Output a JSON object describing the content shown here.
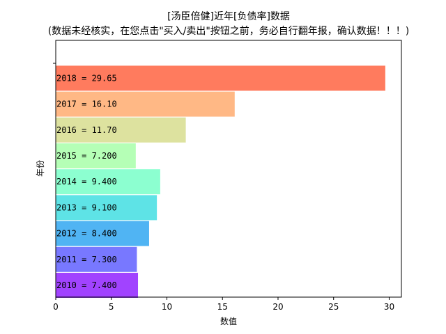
{
  "chart_data": {
    "type": "bar",
    "orientation": "horizontal",
    "title": "[汤臣倍健]近年[负债率]数据",
    "subtitle": "(数据未经核实，在您点击\"买入/卖出\"按钮之前，务必自行翻年报，确认数据！！！)",
    "xlabel": "数值",
    "ylabel": "年份",
    "xlim": [
      0,
      31.1
    ],
    "xticks": [
      0,
      5,
      10,
      15,
      20,
      25,
      30
    ],
    "grid": false,
    "categories": [
      "2010",
      "2011",
      "2012",
      "2013",
      "2014",
      "2015",
      "2016",
      "2017",
      "2018"
    ],
    "values": [
      7.4,
      7.3,
      8.4,
      9.1,
      9.4,
      7.2,
      11.7,
      16.1,
      29.65
    ],
    "bar_labels": [
      "2010 = 7.400",
      "2011 = 7.300",
      "2012 = 8.400",
      "2013 = 9.100",
      "2014 = 9.400",
      "2015 = 7.200",
      "2016 = 11.70",
      "2017 = 16.10",
      "2018 = 29.65"
    ],
    "colors": [
      "#8c1aff",
      "#5a5aff",
      "#2aa3f0",
      "#3bdde0",
      "#73ffc6",
      "#a5ffa6",
      "#d6dc8a",
      "#ffa86a",
      "#ff5e3a"
    ]
  }
}
